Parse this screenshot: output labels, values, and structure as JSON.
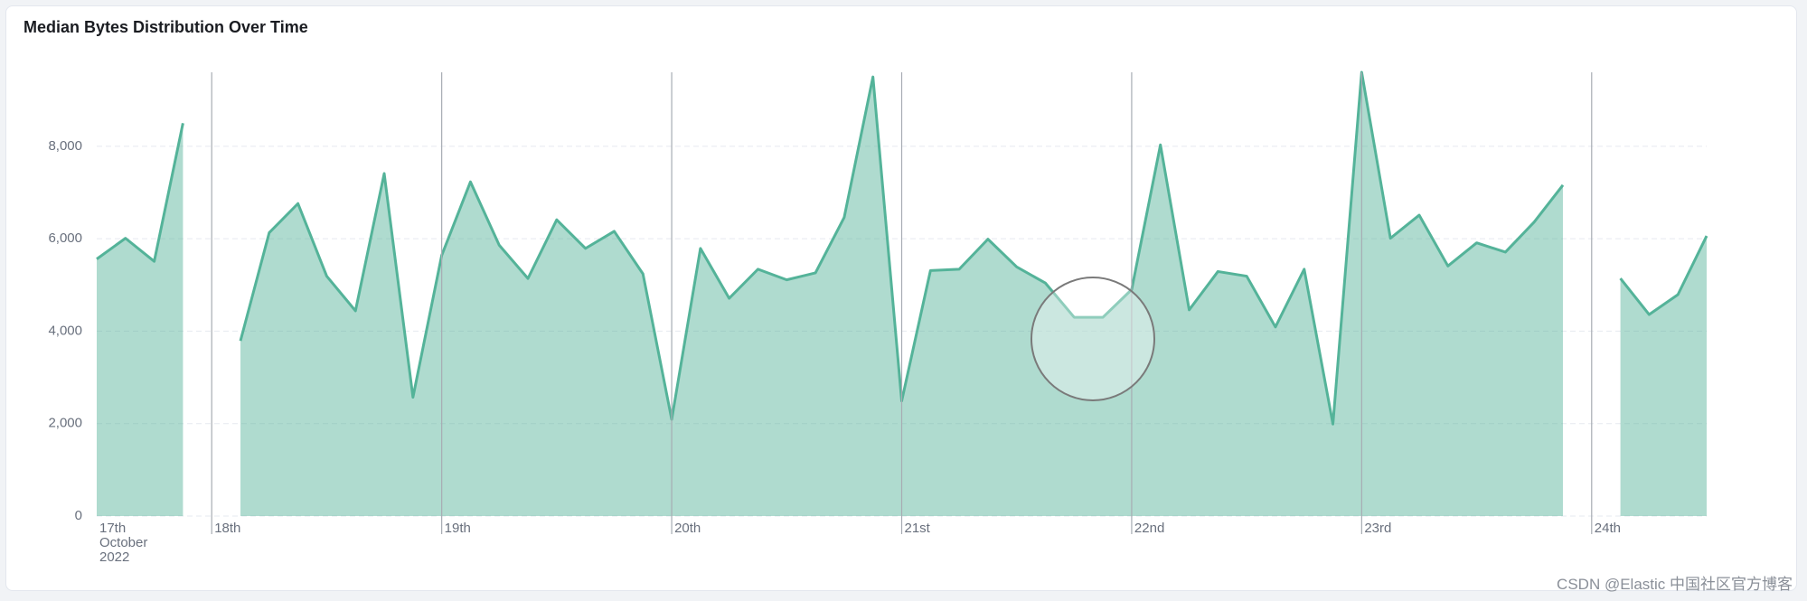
{
  "chart_data": {
    "type": "area",
    "title": "Median Bytes Distribution Over Time",
    "categories": [
      "17th October 2022",
      null,
      null,
      null,
      "18th",
      null,
      null,
      null,
      null,
      null,
      null,
      null,
      "19th",
      null,
      null,
      null,
      null,
      null,
      null,
      null,
      "20th",
      null,
      null,
      null,
      null,
      null,
      null,
      null,
      "21st",
      null,
      null,
      null,
      null,
      null,
      null,
      null,
      "22nd",
      null,
      null,
      null,
      null,
      null,
      null,
      null,
      "23rd",
      null,
      null,
      null,
      null,
      null,
      null,
      null,
      "24th",
      null,
      null,
      null,
      null
    ],
    "series": [
      {
        "name": "Median Bytes",
        "color": "#54b399",
        "values": [
          5560,
          6010,
          5510,
          8500,
          null,
          3790,
          6130,
          6760,
          5190,
          4440,
          7410,
          2570,
          5640,
          7230,
          5860,
          5140,
          6410,
          5790,
          6160,
          5240,
          2090,
          5790,
          4710,
          5340,
          5110,
          5260,
          6460,
          9500,
          2490,
          5310,
          5340,
          5990,
          5390,
          5040,
          4300,
          4300,
          4900,
          8030,
          4460,
          5290,
          5190,
          4090,
          5340,
          1990,
          9600,
          6010,
          6510,
          5410,
          5910,
          5710,
          6360,
          7160,
          null,
          5140,
          4360,
          4790,
          6060
        ]
      }
    ],
    "ylim": [
      0,
      9600
    ],
    "yticks": [
      0,
      {
        "value": 2000,
        "label": "2,000"
      },
      {
        "value": 4000,
        "label": "4,000"
      },
      {
        "value": 6000,
        "label": "6,000"
      },
      {
        "value": 8000,
        "label": "8,000"
      }
    ],
    "grid": true
  },
  "watermark": "CSDN @Elastic 中国社区官方博客"
}
